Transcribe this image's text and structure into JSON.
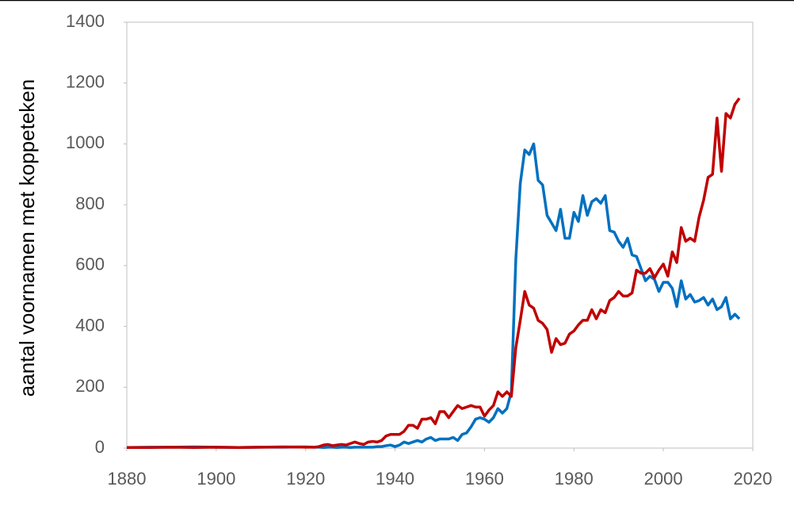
{
  "chart_data": {
    "type": "line",
    "y_label": "aantal voornamen met koppeteken",
    "x": [
      1880,
      1885,
      1890,
      1895,
      1900,
      1905,
      1910,
      1915,
      1920,
      1922,
      1923,
      1924,
      1925,
      1926,
      1927,
      1928,
      1929,
      1930,
      1931,
      1932,
      1933,
      1934,
      1935,
      1936,
      1937,
      1938,
      1939,
      1940,
      1941,
      1942,
      1943,
      1944,
      1945,
      1946,
      1947,
      1948,
      1949,
      1950,
      1951,
      1952,
      1953,
      1954,
      1955,
      1956,
      1957,
      1958,
      1959,
      1960,
      1961,
      1962,
      1963,
      1964,
      1965,
      1966,
      1967,
      1968,
      1969,
      1970,
      1971,
      1972,
      1973,
      1974,
      1975,
      1976,
      1977,
      1978,
      1979,
      1980,
      1981,
      1982,
      1983,
      1984,
      1985,
      1986,
      1987,
      1988,
      1989,
      1990,
      1991,
      1992,
      1993,
      1994,
      1995,
      1996,
      1997,
      1998,
      1999,
      2000,
      2001,
      2002,
      2003,
      2004,
      2005,
      2006,
      2007,
      2008,
      2009,
      2010,
      2011,
      2012,
      2013,
      2014,
      2015,
      2016,
      2017
    ],
    "series": [
      {
        "color": "#0070c0",
        "values": [
          2,
          3,
          3,
          4,
          3,
          2,
          3,
          3,
          4,
          3,
          3,
          2,
          3,
          3,
          2,
          3,
          3,
          2,
          3,
          3,
          3,
          3,
          3,
          5,
          5,
          8,
          10,
          5,
          10,
          20,
          15,
          20,
          25,
          20,
          30,
          35,
          25,
          30,
          30,
          30,
          35,
          25,
          45,
          50,
          70,
          95,
          100,
          95,
          85,
          100,
          130,
          115,
          130,
          185,
          620,
          870,
          980,
          965,
          1000,
          880,
          865,
          765,
          740,
          715,
          785,
          690,
          690,
          775,
          745,
          830,
          765,
          810,
          820,
          805,
          830,
          715,
          710,
          680,
          660,
          690,
          635,
          630,
          590,
          550,
          565,
          555,
          515,
          545,
          545,
          525,
          465,
          550,
          490,
          505,
          480,
          485,
          495,
          470,
          490,
          455,
          465,
          495,
          425,
          440,
          425
        ]
      },
      {
        "color": "#c00000",
        "values": [
          2,
          2,
          3,
          2,
          3,
          2,
          3,
          4,
          3,
          3,
          5,
          10,
          12,
          8,
          10,
          12,
          10,
          15,
          20,
          15,
          12,
          20,
          22,
          20,
          25,
          40,
          45,
          45,
          45,
          55,
          75,
          75,
          65,
          95,
          95,
          100,
          80,
          120,
          120,
          100,
          120,
          140,
          130,
          135,
          140,
          135,
          135,
          105,
          125,
          140,
          185,
          170,
          185,
          170,
          330,
          420,
          515,
          470,
          460,
          420,
          410,
          390,
          315,
          360,
          340,
          345,
          375,
          385,
          405,
          420,
          420,
          455,
          425,
          455,
          445,
          485,
          495,
          515,
          500,
          500,
          510,
          585,
          575,
          575,
          590,
          560,
          585,
          605,
          565,
          645,
          610,
          725,
          680,
          690,
          680,
          760,
          815,
          890,
          900,
          1085,
          910,
          1100,
          1085,
          1130,
          1150
        ]
      }
    ],
    "xlim": [
      1880,
      2020
    ],
    "xticks": [
      1880,
      1900,
      1920,
      1940,
      1960,
      1980,
      2000,
      2020
    ],
    "ylim": [
      0,
      1400
    ],
    "yticks": [
      0,
      200,
      400,
      600,
      800,
      1000,
      1200,
      1400
    ]
  }
}
